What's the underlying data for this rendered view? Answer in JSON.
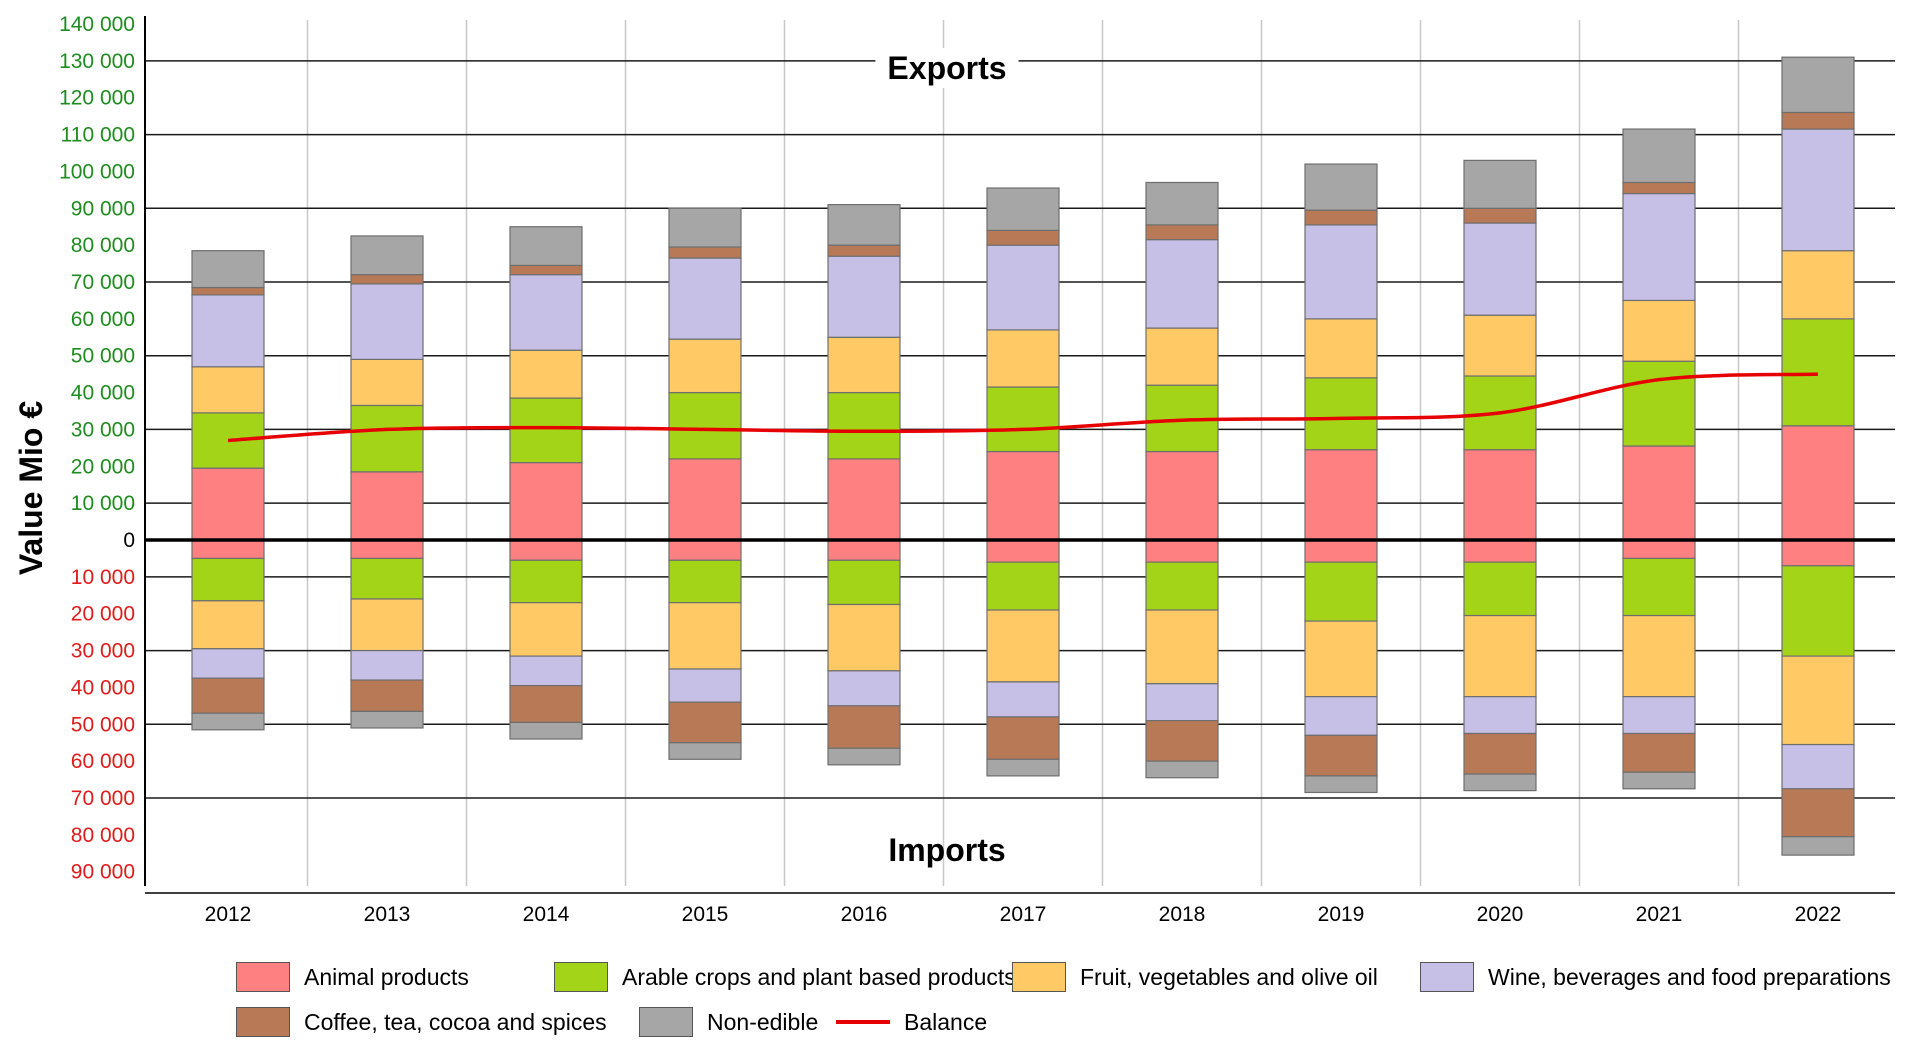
{
  "chart_data": {
    "type": "bar",
    "stacked": true,
    "ylabel": "Value Mio €",
    "annotations": {
      "top": "Exports",
      "bottom": "Imports"
    },
    "ylim": [
      -90000,
      140000
    ],
    "yticks_positive": [
      "140 000",
      "130 000",
      "120 000",
      "110 000",
      "100 000",
      "90 000",
      "80 000",
      "70 000",
      "60 000",
      "50 000",
      "40 000",
      "30 000",
      "20 000",
      "10 000"
    ],
    "ytick_zero": "0",
    "yticks_negative": [
      "10 000",
      "20 000",
      "30 000",
      "40 000",
      "50 000",
      "60 000",
      "70 000",
      "80 000",
      "90 000"
    ],
    "positive_tick_color": "#1f8c1f",
    "negative_tick_color": "#e01b1b",
    "zero_tick_color": "#000000",
    "categories": [
      "2012",
      "2013",
      "2014",
      "2015",
      "2016",
      "2017",
      "2018",
      "2019",
      "2020",
      "2021",
      "2022"
    ],
    "series": [
      {
        "name": "Animal products",
        "color": "#ff8080",
        "exports": [
          19500,
          18500,
          21000,
          22000,
          22000,
          24000,
          24000,
          24500,
          24500,
          25500,
          31000
        ],
        "imports": [
          5000,
          5000,
          5500,
          5500,
          5500,
          6000,
          6000,
          6000,
          6000,
          5000,
          7000
        ]
      },
      {
        "name": "Arable crops and plant based products",
        "color": "#a3d417",
        "exports": [
          15000,
          18000,
          17500,
          18000,
          18000,
          17500,
          18000,
          19500,
          20000,
          23000,
          29000
        ],
        "imports": [
          11500,
          11000,
          11500,
          11500,
          12000,
          13000,
          13000,
          16000,
          14500,
          15500,
          24500
        ]
      },
      {
        "name": "Fruit, vegetables and olive oil",
        "color": "#ffc966",
        "exports": [
          12500,
          12500,
          13000,
          14500,
          15000,
          15500,
          15500,
          16000,
          16500,
          16500,
          18500
        ],
        "imports": [
          13000,
          14000,
          14500,
          18000,
          18000,
          19500,
          20000,
          20500,
          22000,
          22000,
          24000
        ]
      },
      {
        "name": "Wine, beverages and food preparations",
        "color": "#c6bfe6",
        "exports": [
          19500,
          20500,
          20500,
          22000,
          22000,
          23000,
          24000,
          25500,
          25000,
          29000,
          33000
        ],
        "imports": [
          8000,
          8000,
          8000,
          9000,
          9500,
          9500,
          10000,
          10500,
          10000,
          10000,
          12000
        ]
      },
      {
        "name": "Coffee, tea, cocoa and spices",
        "color": "#b87a56",
        "exports": [
          2000,
          2500,
          2500,
          3000,
          3000,
          4000,
          4000,
          4000,
          4000,
          3000,
          4500
        ],
        "imports": [
          9500,
          8500,
          10000,
          11000,
          11500,
          11500,
          11000,
          11000,
          11000,
          10500,
          13000
        ]
      },
      {
        "name": "Non-edible",
        "color": "#a6a6a6",
        "exports": [
          10000,
          10500,
          10500,
          10500,
          11000,
          11500,
          11500,
          12500,
          13000,
          14500,
          15000
        ],
        "imports": [
          4500,
          4500,
          4500,
          4500,
          4500,
          4500,
          4500,
          4500,
          4500,
          4500,
          5000
        ]
      }
    ],
    "balance": {
      "name": "Balance",
      "color": "#e60000",
      "values": [
        27000,
        30000,
        30500,
        30000,
        29500,
        30000,
        32500,
        33000,
        34500,
        43500,
        45000
      ]
    },
    "grid": {
      "horizontal": true,
      "vertical": true
    },
    "legend_position": "bottom"
  }
}
